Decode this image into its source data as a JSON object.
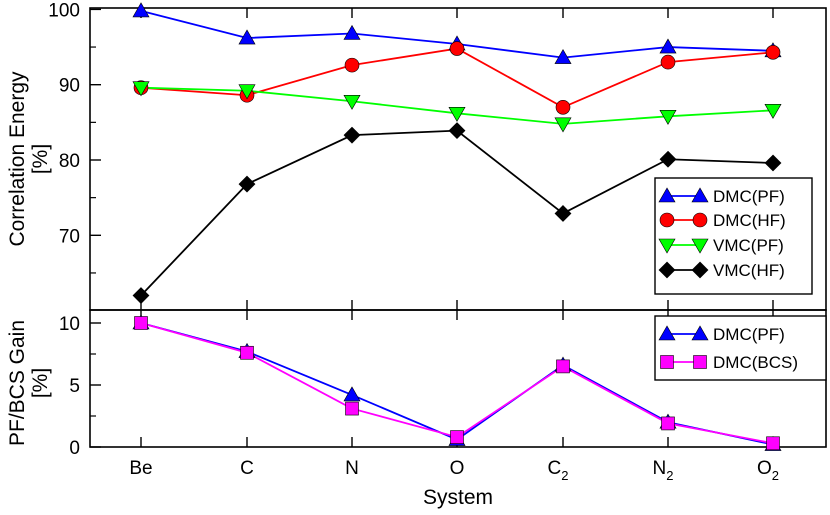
{
  "chart_data": [
    {
      "type": "line",
      "ylabel_line1": "Correlation Energy",
      "ylabel_line2": "[%]",
      "categories": [
        "Be",
        "C",
        "N",
        "O",
        "C2",
        "N2",
        "O2"
      ],
      "ylim": [
        60,
        100
      ],
      "yticks": [
        70,
        80,
        90,
        100
      ],
      "series": [
        {
          "name": "DMC(PF)",
          "color": "#0000ff",
          "marker": "triangle-up",
          "values": [
            99.8,
            96.2,
            96.8,
            95.4,
            93.6,
            95.0,
            94.5
          ]
        },
        {
          "name": "DMC(HF)",
          "color": "#ff0000",
          "marker": "circle",
          "values": [
            89.6,
            88.6,
            92.6,
            94.8,
            87.0,
            93.0,
            94.3
          ]
        },
        {
          "name": "VMC(PF)",
          "color": "#00ff00",
          "marker": "triangle-down",
          "values": [
            89.6,
            89.2,
            87.8,
            86.2,
            84.8,
            85.8,
            86.6
          ]
        },
        {
          "name": "VMC(HF)",
          "color": "#000000",
          "marker": "diamond",
          "values": [
            62.0,
            76.8,
            83.3,
            83.9,
            72.9,
            80.1,
            79.6
          ]
        }
      ],
      "legend": "bottom-right"
    },
    {
      "type": "line",
      "ylabel_line1": "PF/BCS Gain",
      "ylabel_line2": "[%]",
      "xlabel": "System",
      "categories": [
        "Be",
        "C",
        "N",
        "O",
        "C2",
        "N2",
        "O2"
      ],
      "ylim": [
        0,
        11
      ],
      "yticks": [
        0,
        5,
        10
      ],
      "series": [
        {
          "name": "DMC(PF)",
          "color": "#0000ff",
          "marker": "triangle-up",
          "values": [
            10.0,
            7.7,
            4.2,
            0.6,
            6.6,
            2.0,
            0.2
          ]
        },
        {
          "name": "DMC(BCS)",
          "color": "#ff00ff",
          "marker": "square",
          "values": [
            10.0,
            7.6,
            3.1,
            0.8,
            6.5,
            1.9,
            0.3
          ]
        }
      ],
      "legend": "top-right"
    }
  ],
  "x_tick_labels": [
    {
      "main": "Be",
      "sub": ""
    },
    {
      "main": "C",
      "sub": ""
    },
    {
      "main": "N",
      "sub": ""
    },
    {
      "main": "O",
      "sub": ""
    },
    {
      "main": "C",
      "sub": "2"
    },
    {
      "main": "N",
      "sub": "2"
    },
    {
      "main": "O",
      "sub": "2"
    }
  ]
}
